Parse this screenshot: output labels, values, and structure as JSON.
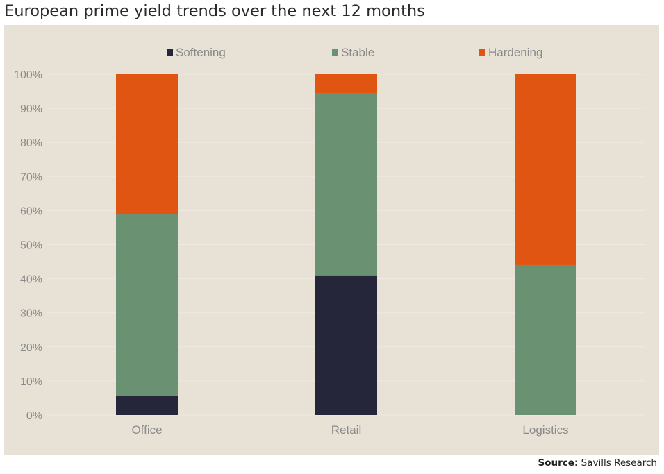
{
  "title": "European prime yield trends over the next 12 months",
  "source": {
    "label": "Source:",
    "text": "Savills Research"
  },
  "colors": {
    "background": "#e7e1d6",
    "softening": "#25263a",
    "stable": "#6b9173",
    "hardening": "#e05512",
    "grid": "#efeae2",
    "text": "#8a8a8a"
  },
  "chart_data": {
    "type": "bar",
    "stacked": true,
    "categories": [
      "Office",
      "Retail",
      "Logistics"
    ],
    "series": [
      {
        "name": "Softening",
        "color": "#25263a",
        "values": [
          5.5,
          41,
          0
        ]
      },
      {
        "name": "Stable",
        "color": "#6b9173",
        "values": [
          53.5,
          53.5,
          44
        ]
      },
      {
        "name": "Hardening",
        "color": "#e05512",
        "values": [
          41,
          5.5,
          56
        ]
      }
    ],
    "ylim": [
      0,
      100
    ],
    "yticks": [
      "0%",
      "10%",
      "20%",
      "30%",
      "40%",
      "50%",
      "60%",
      "70%",
      "80%",
      "90%",
      "100%"
    ],
    "legend_position": "top",
    "grid": true
  }
}
